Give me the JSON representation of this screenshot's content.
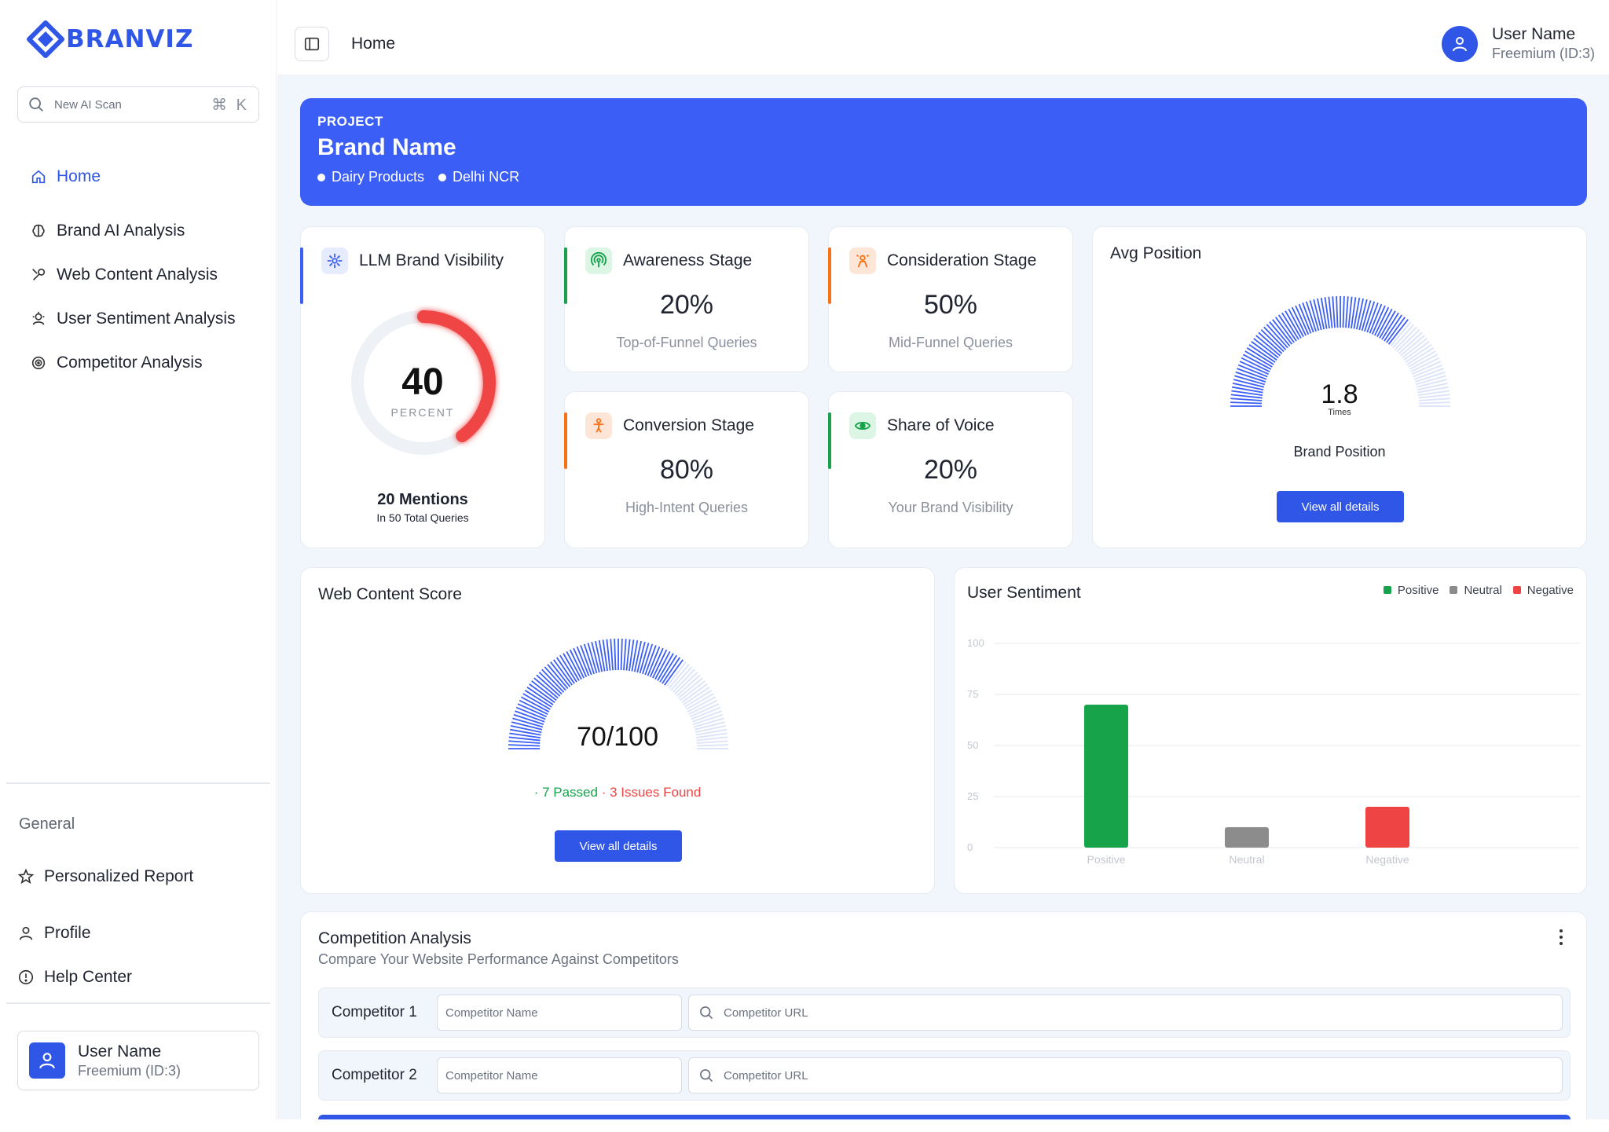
{
  "app": {
    "logo_text": "BRANVIZ"
  },
  "sidebar": {
    "search_placeholder": "New AI Scan",
    "search_shortcut": "⌘ K",
    "items": [
      {
        "label": "Home",
        "icon": "home-icon",
        "active": true
      },
      {
        "label": "Brand AI Analysis",
        "icon": "brain-icon"
      },
      {
        "label": "Web Content Analysis",
        "icon": "tools-icon"
      },
      {
        "label": "User Sentiment Analysis",
        "icon": "sentiment-icon"
      },
      {
        "label": "Competitor Analysis",
        "icon": "target-icon"
      }
    ],
    "general_label": "General",
    "general_items": [
      {
        "label": "Personalized Report",
        "icon": "star-icon"
      },
      {
        "label": "Profile",
        "icon": "user-icon"
      },
      {
        "label": "Help Center",
        "icon": "info-icon"
      }
    ],
    "user": {
      "name": "User Name",
      "tier": "Freemium (ID:3)"
    }
  },
  "topbar": {
    "title": "Home",
    "user": {
      "name": "User Name",
      "tier": "Freemium (ID:3)"
    }
  },
  "project": {
    "label": "PROJECT",
    "brand": "Brand Name",
    "tags": [
      "Dairy Products",
      "Delhi NCR"
    ]
  },
  "llm_visibility": {
    "title": "LLM Brand Visibility",
    "value": "40",
    "unit": "PERCENT",
    "percent": 40,
    "mentions": "20 Mentions",
    "total": "In 50 Total Queries"
  },
  "stages": [
    {
      "title": "Awareness Stage",
      "value": "20%",
      "sub": "Top-of-Funnel Queries",
      "accent": "#16a34a",
      "icon": "radar-icon"
    },
    {
      "title": "Consideration Stage",
      "value": "50%",
      "sub": "Mid-Funnel Queries",
      "accent": "#f97316",
      "icon": "person-question-icon"
    },
    {
      "title": "Conversion Stage",
      "value": "80%",
      "sub": "High-Intent Queries",
      "accent": "#f97316",
      "icon": "person-target-icon"
    },
    {
      "title": "Share of Voice",
      "value": "20%",
      "sub": "Your Brand Visibility",
      "accent": "#16a34a",
      "icon": "eye-icon"
    }
  ],
  "avg_position": {
    "title": "Avg Position",
    "value": "1.8",
    "unit": "Times",
    "gauge_fraction": 0.72,
    "label": "Brand Position",
    "button": "View all details"
  },
  "web_content": {
    "title": "Web Content Score",
    "value": "70/100",
    "gauge_fraction": 0.7,
    "passed": "· 7 Passed",
    "issues": "· 3 Issues Found",
    "button": "View all details"
  },
  "sentiment": {
    "title": "User Sentiment",
    "legend": [
      {
        "name": "Positive",
        "color": "#16a34a"
      },
      {
        "name": "Neutral",
        "color": "#8c8c8c"
      },
      {
        "name": "Negative",
        "color": "#ef4444"
      }
    ]
  },
  "chart_data": {
    "type": "bar",
    "categories": [
      "Positive",
      "Neutral",
      "Negative"
    ],
    "values": [
      70,
      10,
      20
    ],
    "colors": [
      "#16a34a",
      "#8c8c8c",
      "#ef4444"
    ],
    "yticks": [
      0,
      25,
      50,
      75,
      100
    ],
    "ylim": [
      0,
      100
    ],
    "grid": true,
    "legend_position": "top-right"
  },
  "competition": {
    "title": "Competition Analysis",
    "subtitle": "Compare Your Website Performance Against Competitors",
    "rows": [
      {
        "label": "Competitor 1",
        "name_placeholder": "Competitor Name",
        "url_placeholder": "Competitor URL"
      },
      {
        "label": "Competitor 2",
        "name_placeholder": "Competitor Name",
        "url_placeholder": "Competitor URL"
      }
    ]
  }
}
